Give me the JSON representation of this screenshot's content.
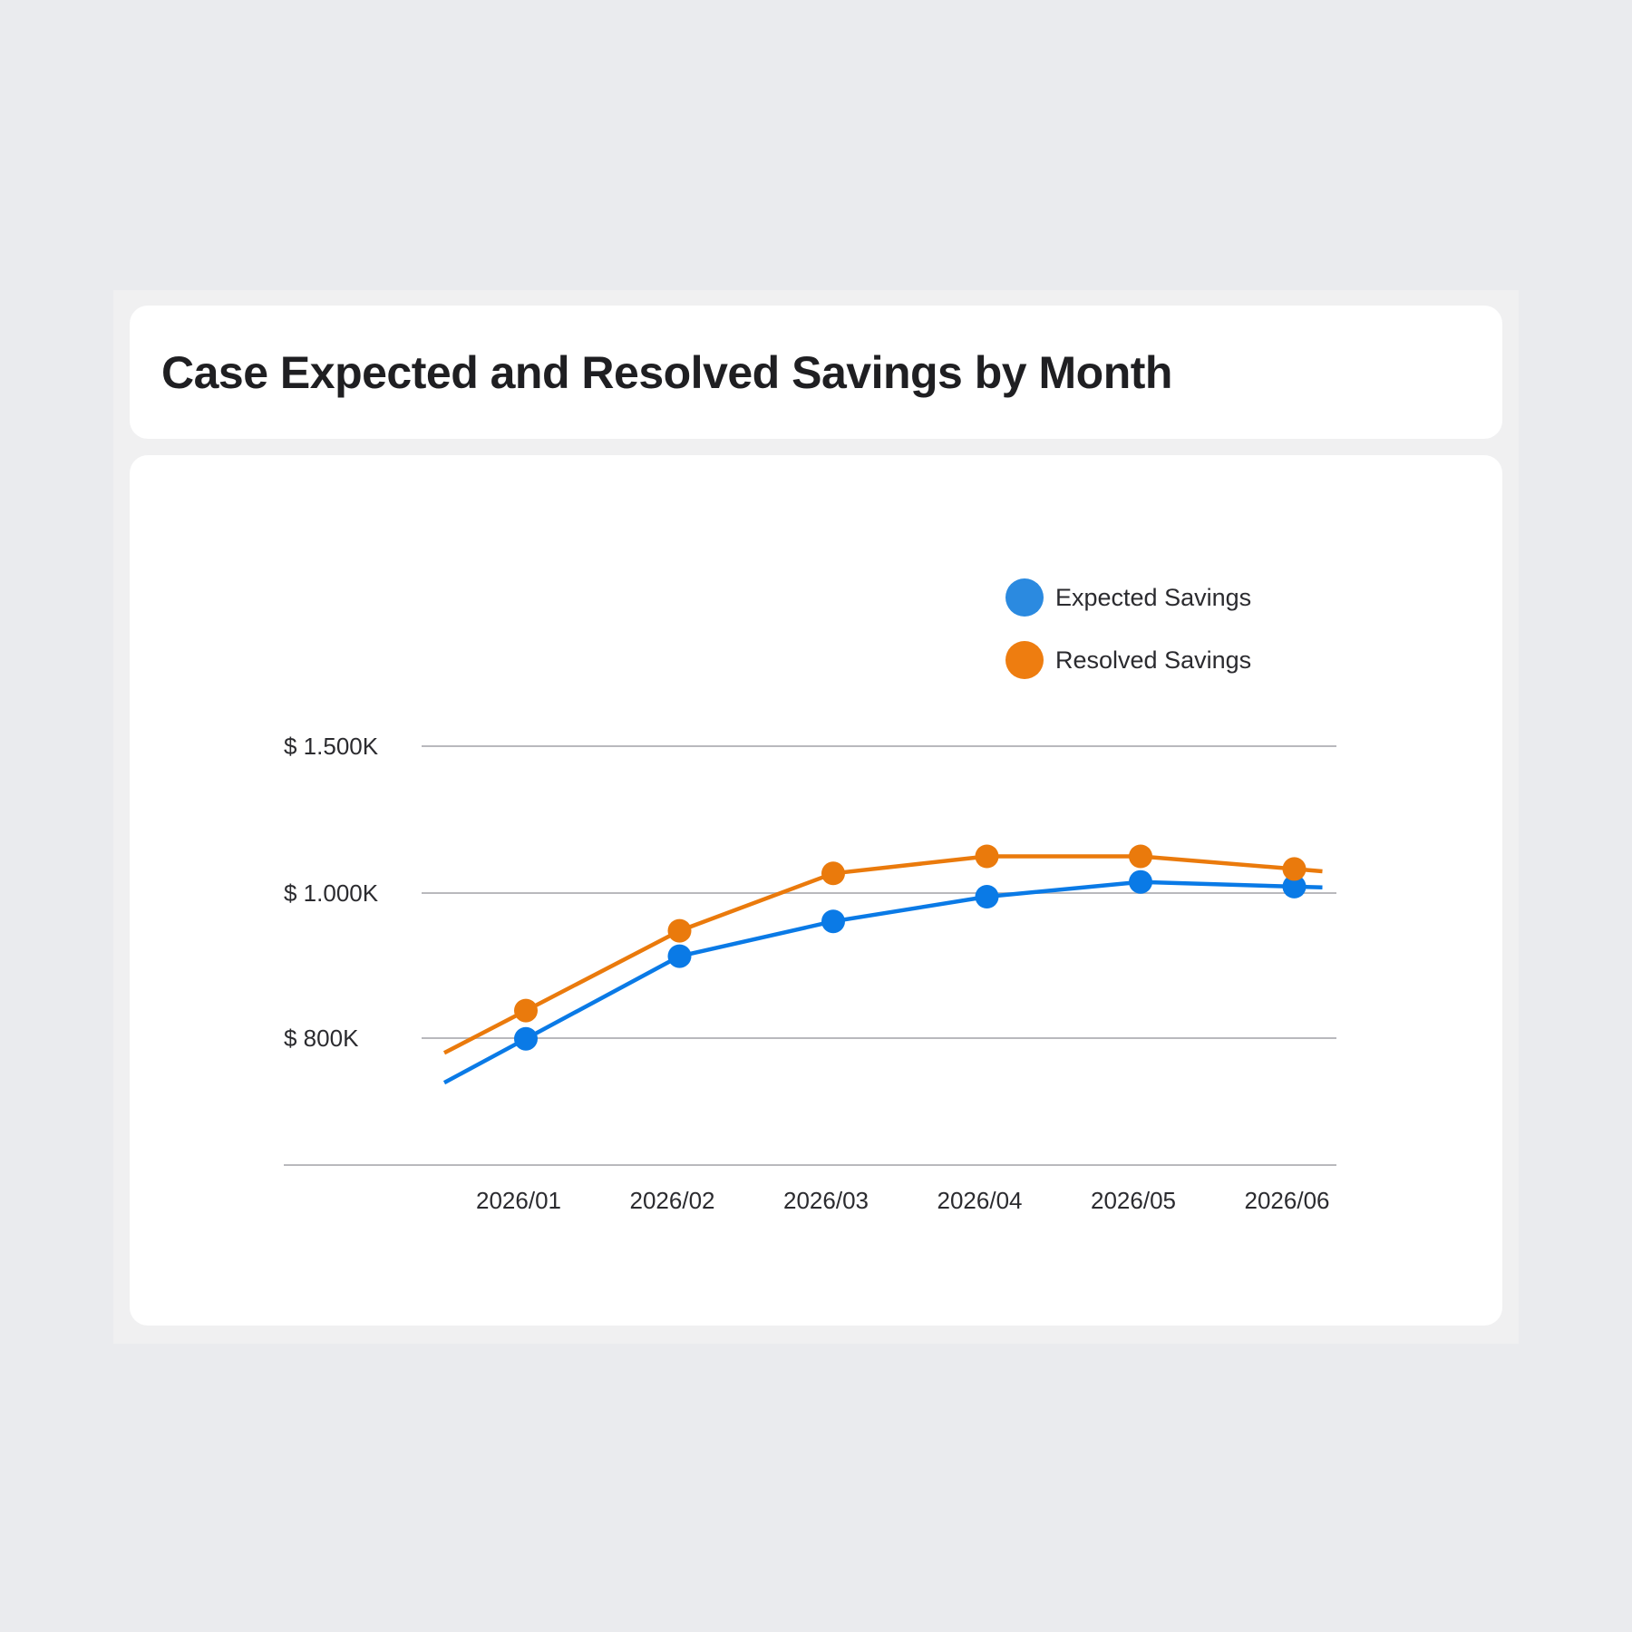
{
  "title": "Case Expected and Resolved Savings by Month",
  "chart_data": {
    "type": "line",
    "title": "Case Expected and Resolved Savings by Month",
    "categories": [
      "2026/01",
      "2026/02",
      "2026/03",
      "2026/04",
      "2026/05",
      "2026/06"
    ],
    "y_ticks": [
      {
        "value": 800,
        "label": "$ 800K"
      },
      {
        "value": 1000,
        "label": "$ 1.000K"
      },
      {
        "value": 1500,
        "label": "$ 1.500K"
      }
    ],
    "series": [
      {
        "name": "Expected Savings",
        "color": "#0a7ae6",
        "legend_color": "#2b8ae0",
        "values": [
          799,
          913,
          961,
          995,
          1038,
          1022
        ]
      },
      {
        "name": "Resolved Savings",
        "color": "#ea7a0c",
        "legend_color": "#ee7d10",
        "values": [
          838,
          948,
          1067,
          1125,
          1125,
          1082
        ]
      }
    ],
    "grid": true,
    "legend": "top-right"
  }
}
